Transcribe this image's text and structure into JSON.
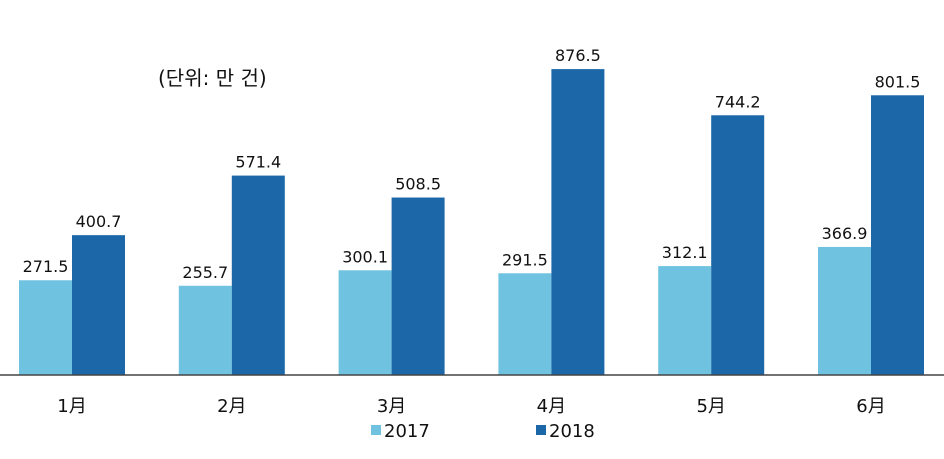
{
  "chart_data": {
    "type": "bar",
    "annotation": "(단위: 만 건)",
    "categories": [
      "1月",
      "2月",
      "3月",
      "4月",
      "5月",
      "6月"
    ],
    "series": [
      {
        "name": "2017",
        "color": "#70c3e0",
        "values": [
          271.5,
          255.7,
          300.1,
          291.5,
          312.1,
          366.9
        ]
      },
      {
        "name": "2018",
        "color": "#1c67a8",
        "values": [
          400.7,
          571.4,
          508.5,
          876.5,
          744.2,
          801.5
        ]
      }
    ],
    "ylim": [
      0,
      1000
    ],
    "grid": false,
    "legend_position": "bottom"
  }
}
